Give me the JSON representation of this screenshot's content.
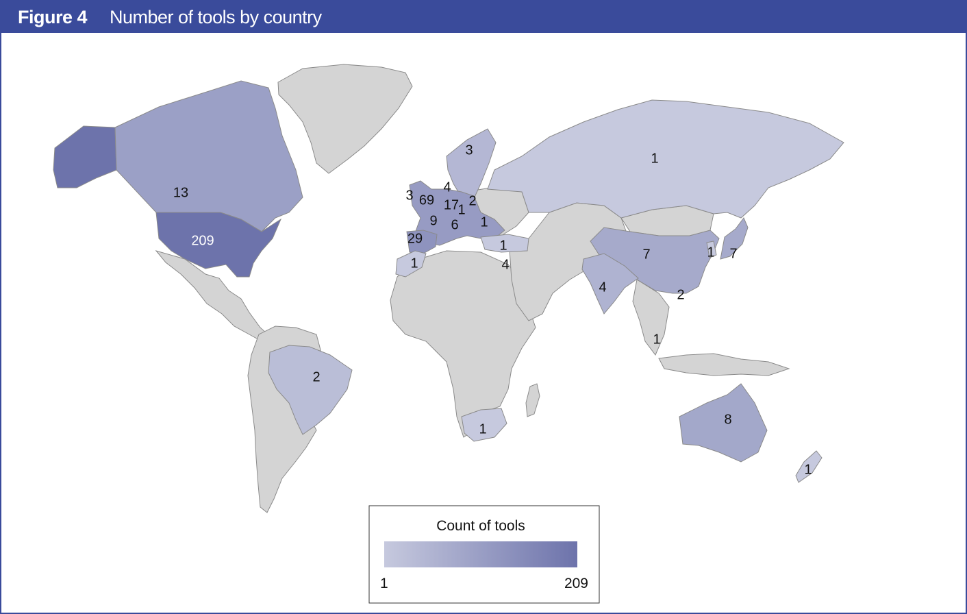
{
  "header": {
    "figure_label": "Figure 4",
    "title": "Number of tools by country"
  },
  "colors": {
    "header_bg": "#3a4b9b",
    "no_data": "#d4d4d4",
    "scale_low": "#c6c9de",
    "scale_high": "#6d73ab"
  },
  "legend": {
    "title": "Count of tools",
    "min_label": "1",
    "max_label": "209",
    "min": 1,
    "max": 209
  },
  "countries": [
    {
      "name": "United States",
      "count": 209,
      "label": "209"
    },
    {
      "name": "Canada",
      "count": 13,
      "label": "13"
    },
    {
      "name": "Brazil",
      "count": 2,
      "label": "2"
    },
    {
      "name": "United Kingdom",
      "count": 69,
      "label": "69"
    },
    {
      "name": "Ireland",
      "count": 3,
      "label": "3"
    },
    {
      "name": "Netherlands",
      "count": 4,
      "label": "4"
    },
    {
      "name": "Germany",
      "count": 17,
      "label": "17"
    },
    {
      "name": "Czechia",
      "count": 1,
      "label": "1"
    },
    {
      "name": "Poland",
      "count": 2,
      "label": "2"
    },
    {
      "name": "France",
      "count": 9,
      "label": "9"
    },
    {
      "name": "Switzerland",
      "count": 6,
      "label": "6"
    },
    {
      "name": "Romania",
      "count": 1,
      "label": "1"
    },
    {
      "name": "Spain",
      "count": 29,
      "label": "29"
    },
    {
      "name": "Morocco",
      "count": 1,
      "label": "1"
    },
    {
      "name": "Turkey",
      "count": 1,
      "label": "1"
    },
    {
      "name": "Israel",
      "count": 4,
      "label": "4"
    },
    {
      "name": "Sweden",
      "count": 3,
      "label": "3"
    },
    {
      "name": "Russia",
      "count": 1,
      "label": "1"
    },
    {
      "name": "China",
      "count": 7,
      "label": "7"
    },
    {
      "name": "South Korea",
      "count": 1,
      "label": "1"
    },
    {
      "name": "Japan",
      "count": 7,
      "label": "7"
    },
    {
      "name": "India",
      "count": 4,
      "label": "4"
    },
    {
      "name": "Hong Kong",
      "count": 2,
      "label": "2"
    },
    {
      "name": "Singapore",
      "count": 1,
      "label": "1"
    },
    {
      "name": "South Africa",
      "count": 1,
      "label": "1"
    },
    {
      "name": "Australia",
      "count": 8,
      "label": "8"
    },
    {
      "name": "New Zealand",
      "count": 1,
      "label": "1"
    }
  ]
}
